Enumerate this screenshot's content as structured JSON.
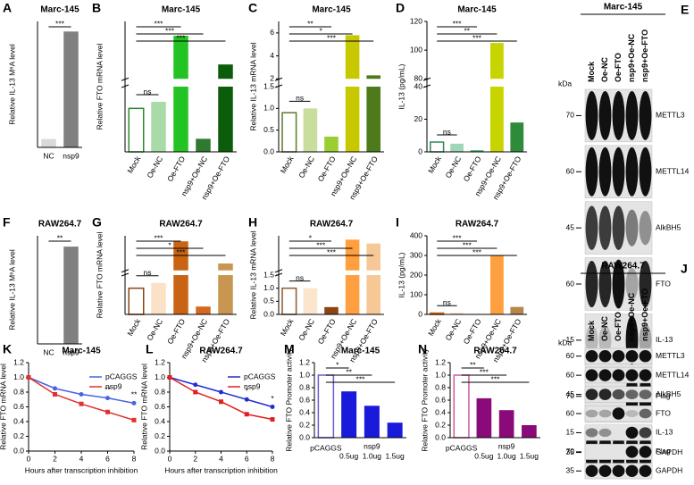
{
  "chart_data": [
    {
      "type": "bar",
      "panel": "A",
      "title": "Marc-145",
      "ylabel": "Relative IL-13 M⁶A level",
      "categories": [
        "NC",
        "nsp9"
      ],
      "values": [
        1,
        13.8
      ],
      "colors": [
        "#d9d9d9",
        "#808080"
      ],
      "ylim": [
        0,
        15
      ],
      "significance": [
        {
          "from": 0,
          "to": 1,
          "label": "***"
        }
      ]
    },
    {
      "type": "bar",
      "panel": "B",
      "title": "Marc-145",
      "ylabel": "Relative FTO mRNA level",
      "categories": [
        "Mock",
        "Oe-NC",
        "Oe-FTO",
        "nsp9+Oe-NC",
        "nsp9+Oe-FTO"
      ],
      "values": [
        1.0,
        1.15,
        80,
        0.3,
        40
      ],
      "colors": [
        "#2e8b2e",
        "#a8dba8",
        "#22c322",
        "#2f7a2f",
        "#0b5d0b"
      ],
      "hollow": [
        0
      ],
      "ylim": [
        0,
        100
      ],
      "ybreak": [
        1.5,
        20
      ],
      "significance": [
        {
          "from": 0,
          "to": 1,
          "label": "ns"
        },
        {
          "from": 0,
          "to": 2,
          "label": "***"
        },
        {
          "from": 0,
          "to": 3,
          "label": "***"
        },
        {
          "from": 0,
          "to": 4,
          "label": "***"
        }
      ]
    },
    {
      "type": "bar",
      "panel": "C",
      "title": "Marc-145",
      "ylabel": "Relative IL-13 mRNA level",
      "categories": [
        "Mock",
        "Oe-NC",
        "Oe-FTO",
        "nsp9+Oe-NC",
        "nsp9+Oe-FTO"
      ],
      "values": [
        0.9,
        1.0,
        0.35,
        5.8,
        2.3
      ],
      "colors": [
        "#5a7a2a",
        "#c9de9c",
        "#9acd32",
        "#c8c800",
        "#4d7a1a"
      ],
      "hollow": [
        0
      ],
      "ylim": [
        0,
        7
      ],
      "ybreak": [
        1.5,
        2
      ],
      "yticks": [
        {
          "value": 0,
          "label": "0.0"
        },
        0.5,
        {
          "value": 1,
          "label": "1.0"
        },
        1.5,
        2,
        4,
        6
      ],
      "significance": [
        {
          "from": 0,
          "to": 1,
          "label": "ns"
        },
        {
          "from": 0,
          "to": 2,
          "label": "**"
        },
        {
          "from": 0,
          "to": 3,
          "label": "*"
        },
        {
          "from": 0,
          "to": 4,
          "label": "***"
        }
      ]
    },
    {
      "type": "bar",
      "panel": "D",
      "title": "Marc-145",
      "ylabel": "IL-13 (pg/mL)",
      "categories": [
        "Mock",
        "Oe-NC",
        "Oe-FTO",
        "nsp9+Oe-NC",
        "nsp9+Oe-FTO"
      ],
      "values": [
        6,
        5,
        1,
        105,
        18
      ],
      "colors": [
        "#2e8b57",
        "#9fd6b8",
        "#3cb371",
        "#c8d400",
        "#2e8b3a"
      ],
      "hollow": [
        0
      ],
      "ylim": [
        0,
        120
      ],
      "ybreak": [
        40,
        80
      ],
      "yticks": [
        0,
        20,
        40,
        80,
        100,
        120
      ],
      "significance": [
        {
          "from": 0,
          "to": 1,
          "label": "ns"
        },
        {
          "from": 0,
          "to": 2,
          "label": "***"
        },
        {
          "from": 0,
          "to": 3,
          "label": "**"
        },
        {
          "from": 0,
          "to": 4,
          "label": "***"
        }
      ]
    },
    {
      "type": "blot",
      "panel": "E",
      "title": "Marc-145",
      "kda_label": "kDa",
      "lanes": [
        "Mock",
        "Oe-NC",
        "Oe-FTO",
        "nsp9+Oe-NC",
        "nsp9+Oe-FTO"
      ],
      "rows": [
        {
          "kda": "70",
          "protein": "METTL3"
        },
        {
          "kda": "60",
          "protein": "METTL14"
        },
        {
          "kda": "45",
          "protein": "AlkBH5"
        },
        {
          "kda": "60",
          "protein": "FTO"
        },
        {
          "kda": "15",
          "protein": "IL-13"
        },
        {
          "kda": "70",
          "protein": "Flag"
        },
        {
          "kda": "35",
          "protein": "GAPDH"
        }
      ]
    },
    {
      "type": "bar",
      "panel": "F",
      "title": "RAW264.7",
      "ylabel": "Relative IL-13 M⁶A level",
      "categories": [
        "NC",
        "nsp9"
      ],
      "values": [
        0.5,
        135
      ],
      "colors": [
        "#dddddd",
        "#808080"
      ],
      "ylim": [
        0,
        150
      ],
      "significance": [
        {
          "from": 0,
          "to": 1,
          "label": "**"
        }
      ]
    },
    {
      "type": "bar",
      "panel": "G",
      "title": "RAW264.7",
      "ylabel": "Relative FTO mRNA level",
      "categories": [
        "Mock",
        "Oe-NC",
        "Oe-FTO",
        "nsp9+Oe-NC",
        "nsp9+Oe-FTO"
      ],
      "values": [
        1.0,
        1.2,
        260,
        0.3,
        100
      ],
      "colors": [
        "#8b4513",
        "#fbe1c8",
        "#c86414",
        "#d2691e",
        "#c89650"
      ],
      "hollow": [
        0
      ],
      "ylim": [
        0,
        300
      ],
      "ybreak": [
        1.5,
        50
      ],
      "significance": [
        {
          "from": 0,
          "to": 1,
          "label": "ns"
        },
        {
          "from": 0,
          "to": 2,
          "label": "***"
        },
        {
          "from": 0,
          "to": 3,
          "label": "*"
        },
        {
          "from": 0,
          "to": 4,
          "label": "***"
        }
      ]
    },
    {
      "type": "bar",
      "panel": "H",
      "title": "RAW264.7",
      "ylabel": "Relative IL-13 mRNA level",
      "categories": [
        "Mock",
        "Oe-NC",
        "Oe-FTO",
        "nsp9+Oe-NC",
        "nsp9+Oe-FTO"
      ],
      "values": [
        1.0,
        1.0,
        0.28,
        100,
        90
      ],
      "colors": [
        "#8b5a2b",
        "#fbe5cc",
        "#8b4513",
        "#ff9f40",
        "#f5c896"
      ],
      "hollow": [
        0
      ],
      "ylim": [
        0,
        110
      ],
      "ybreak": [
        1.5,
        20
      ],
      "yticks": [
        {
          "value": 0,
          "label": "0.0"
        },
        0.5,
        {
          "value": 1,
          "label": "1.0"
        },
        1.5
      ],
      "significance": [
        {
          "from": 0,
          "to": 1,
          "label": "ns"
        },
        {
          "from": 0,
          "to": 2,
          "label": "*"
        },
        {
          "from": 0,
          "to": 3,
          "label": "***"
        },
        {
          "from": 0,
          "to": 4,
          "label": "***"
        }
      ]
    },
    {
      "type": "bar",
      "panel": "I",
      "title": "RAW264.7",
      "ylabel": "IL-13 (pg/mL)",
      "categories": [
        "Mock",
        "Oe-NC",
        "Oe-FTO",
        "nsp9+Oe-NC",
        "nsp9+Oe-FTO"
      ],
      "values": [
        7,
        8,
        2,
        300,
        38
      ],
      "colors": [
        "#c86414",
        "#fbe1c8",
        "#8b4513",
        "#ffa040",
        "#b8864b"
      ],
      "hollow": [
        0
      ],
      "ylim": [
        0,
        400
      ],
      "yticks": [
        0,
        100,
        200,
        300,
        400
      ],
      "significance": [
        {
          "from": 0,
          "to": 1,
          "label": "ns"
        },
        {
          "from": 0,
          "to": 2,
          "label": "***"
        },
        {
          "from": 0,
          "to": 3,
          "label": "***"
        },
        {
          "from": 0,
          "to": 4,
          "label": "***"
        }
      ]
    },
    {
      "type": "blot",
      "panel": "J",
      "title": "RAW264.7",
      "kda_label": "kDa",
      "lanes": [
        "Mock",
        "Oe-NC",
        "Oe-FTO",
        "nsp9+Oe-NC",
        "nsp9+Oe-FTO"
      ],
      "rows": [
        {
          "kda": "60",
          "protein": "METTL3"
        },
        {
          "kda": "60",
          "protein": "METTL14"
        },
        {
          "kda": "45",
          "protein": "AlkBH5"
        },
        {
          "kda": "60",
          "protein": "FTO"
        },
        {
          "kda": "15",
          "protein": "IL-13"
        },
        {
          "kda": "70",
          "protein": "Flag"
        },
        {
          "kda": "35",
          "protein": "GAPDH"
        }
      ]
    },
    {
      "type": "line",
      "panel": "K",
      "title": "Marc-145",
      "ylabel": "Relative FTO mRNA level",
      "xlabel": "Hours after transcription inhibition",
      "x": [
        0,
        2,
        4,
        6,
        8
      ],
      "xlim": [
        0,
        8
      ],
      "xticks": [
        0,
        2,
        4,
        6,
        8
      ],
      "ylim": [
        0,
        1.2
      ],
      "yticks": [
        {
          "value": 0,
          "label": "0.0"
        },
        0.2,
        0.4,
        0.6,
        0.8,
        {
          "value": 1,
          "label": "1.0"
        },
        1.2
      ],
      "series": [
        {
          "name": "pCAGGS",
          "color": "#4a63e0",
          "values": [
            1.0,
            0.85,
            0.77,
            0.72,
            0.65
          ]
        },
        {
          "name": "nsp9",
          "color": "#e03131",
          "values": [
            1.0,
            0.77,
            0.64,
            0.53,
            0.42
          ]
        }
      ],
      "annotations": [
        {
          "x": 6,
          "label": "**"
        },
        {
          "x": 8,
          "label": "**"
        }
      ]
    },
    {
      "type": "line",
      "panel": "L",
      "title": "RAW264.7",
      "ylabel": "Relative FTO mRNA level",
      "xlabel": "Hours after transcription inhibition",
      "x": [
        0,
        2,
        4,
        6,
        8
      ],
      "xlim": [
        0,
        8
      ],
      "xticks": [
        0,
        2,
        4,
        6,
        8
      ],
      "ylim": [
        0,
        1.2
      ],
      "yticks": [
        {
          "value": 0,
          "label": "0.0"
        },
        0.2,
        0.4,
        0.6,
        0.8,
        {
          "value": 1,
          "label": "1.0"
        },
        1.2
      ],
      "series": [
        {
          "name": "pCAGGS",
          "color": "#1f2fd0",
          "values": [
            1.0,
            0.9,
            0.8,
            0.7,
            0.6
          ]
        },
        {
          "name": "nsp9",
          "color": "#e02020",
          "values": [
            1.0,
            0.8,
            0.67,
            0.5,
            0.43
          ]
        }
      ],
      "annotations": [
        {
          "x": 6,
          "label": "*"
        },
        {
          "x": 8,
          "label": "*"
        }
      ]
    },
    {
      "type": "bar",
      "panel": "M",
      "title": "Marc-145",
      "ylabel": "Relative FTO Promoter activity",
      "categories": [
        "pCAGGS",
        "0.5ug",
        "1.0ug",
        "1.5ug"
      ],
      "group_label": "nsp9",
      "values": [
        1.0,
        0.74,
        0.51,
        0.24
      ],
      "colors": [
        "#6a5acd",
        "#1a1adb",
        "#1a1adb",
        "#1a1adb"
      ],
      "hollow": [
        0
      ],
      "ylim": [
        0,
        1.2
      ],
      "yticks": [
        {
          "value": 0,
          "label": "0.0"
        },
        0.2,
        0.4,
        0.6,
        0.8,
        {
          "value": 1,
          "label": "1.0"
        },
        1.2
      ],
      "significance": [
        {
          "from": 0,
          "to": 1,
          "label": "*"
        },
        {
          "from": 0,
          "to": 2,
          "label": "**"
        },
        {
          "from": 0,
          "to": 3,
          "label": "***"
        }
      ]
    },
    {
      "type": "bar",
      "panel": "N",
      "title": "RAW264.7",
      "ylabel": "Relative FTO Promoter activity",
      "categories": [
        "pCAGGS",
        "0.5ug",
        "1.0ug",
        "1.5ug"
      ],
      "group_label": "nsp9",
      "values": [
        1.0,
        0.63,
        0.44,
        0.2
      ],
      "colors": [
        "#d05a9a",
        "#8b0a7a",
        "#8b0a7a",
        "#8b0a7a"
      ],
      "hollow": [
        0
      ],
      "ylim": [
        0,
        1.2
      ],
      "yticks": [
        {
          "value": 0,
          "label": "0.0"
        },
        0.2,
        0.4,
        0.6,
        0.8,
        {
          "value": 1,
          "label": "1.0"
        },
        1.2
      ],
      "significance": [
        {
          "from": 0,
          "to": 1,
          "label": "**"
        },
        {
          "from": 0,
          "to": 2,
          "label": "***"
        },
        {
          "from": 0,
          "to": 3,
          "label": "***"
        }
      ]
    }
  ]
}
